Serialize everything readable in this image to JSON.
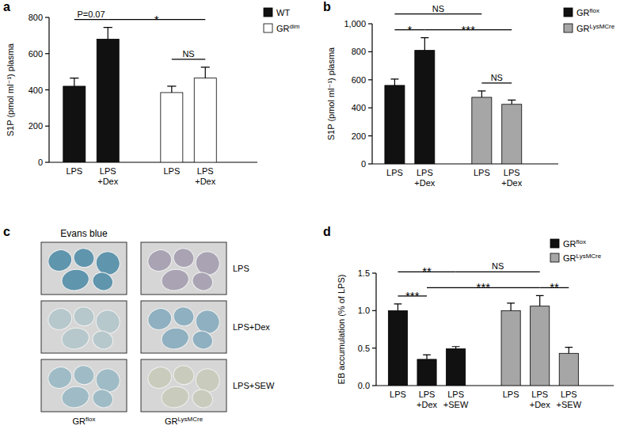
{
  "chart_data": [
    {
      "type": "bar",
      "title": "a",
      "y_label": "S1P (pmol ml⁻¹) plasma",
      "categories": [
        "LPS",
        "LPS+Dex",
        "LPS",
        "LPS+Dex"
      ],
      "series": [
        {
          "name": "WT",
          "color": "#111111",
          "values": [
            420,
            680,
            null,
            null
          ],
          "errors": [
            45,
            65,
            null,
            null
          ]
        },
        {
          "name": "GRdim",
          "color": "#ffffff",
          "values": [
            null,
            null,
            385,
            465
          ],
          "errors": [
            null,
            null,
            35,
            60
          ]
        }
      ],
      "ylim": [
        0,
        800
      ],
      "yticks": [
        0,
        200,
        400,
        600,
        800
      ],
      "legend": "upper right",
      "annotations": [
        {
          "text": "NS",
          "from": 2,
          "to": 3
        },
        {
          "text": "P=0.07",
          "from": 0,
          "to": 1
        },
        {
          "text": "*",
          "from": 1,
          "to": 3
        }
      ]
    },
    {
      "type": "bar",
      "title": "b",
      "y_label": "S1P (pmol ml⁻¹) plasma",
      "categories": [
        "LPS",
        "LPS+Dex",
        "LPS",
        "LPS+Dex"
      ],
      "series": [
        {
          "name": "GRflox",
          "color": "#111111",
          "values": [
            560,
            810,
            null,
            null
          ],
          "errors": [
            45,
            90,
            null,
            null
          ]
        },
        {
          "name": "GRLysMCre",
          "color": "#a6a6a6",
          "values": [
            null,
            null,
            475,
            425
          ],
          "errors": [
            null,
            null,
            45,
            30
          ]
        }
      ],
      "ylim": [
        0,
        1000
      ],
      "yticks": [
        0,
        200,
        400,
        600,
        800,
        {
          "value": 1000,
          "label": "1,000"
        }
      ],
      "legend": "upper right",
      "annotations": [
        {
          "text": "NS",
          "from": 2,
          "to": 3
        },
        {
          "text": "*",
          "from": 0,
          "to": 1
        },
        {
          "text": "***",
          "from": 1,
          "to": 3
        },
        {
          "text": "NS",
          "from": 0,
          "to": 2
        }
      ]
    },
    {
      "type": "bar",
      "title": "d",
      "y_label": "EB accumulation (% of LPS)",
      "categories": [
        "LPS",
        "LPS+Dex",
        "LPS+SEW",
        "LPS",
        "LPS+Dex",
        "LPS+SEW"
      ],
      "series": [
        {
          "name": "GRflox",
          "color": "#111111",
          "values": [
            1.0,
            0.35,
            0.49,
            null,
            null,
            null
          ],
          "errors": [
            0.09,
            0.06,
            0.03,
            null,
            null,
            null
          ]
        },
        {
          "name": "GRLysMCre",
          "color": "#a6a6a6",
          "values": [
            null,
            null,
            null,
            1.0,
            1.06,
            0.43
          ],
          "errors": [
            null,
            null,
            null,
            0.1,
            0.14,
            0.08
          ]
        }
      ],
      "ylim": [
        0,
        1.5
      ],
      "yticks": [
        {
          "value": 0,
          "label": "0.0"
        },
        {
          "value": 0.5,
          "label": "0.5"
        },
        {
          "value": 1.0,
          "label": "1.0"
        },
        {
          "value": 1.5,
          "label": "1.5"
        }
      ],
      "legend": "upper right",
      "annotations": [
        {
          "text": "***",
          "from": 0,
          "to": 1
        },
        {
          "text": "**",
          "from": 4,
          "to": 5
        },
        {
          "text": "***",
          "from": 1,
          "to": 4
        },
        {
          "text": "**",
          "from": 0,
          "to": 2
        },
        {
          "text": "NS",
          "from": 2,
          "to": 4
        }
      ]
    }
  ],
  "photo_panel": {
    "title": "c",
    "heading": "Evans blue",
    "rows": [
      "LPS",
      "LPS+Dex",
      "LPS+SEW"
    ],
    "columns": [
      "GRflox",
      "GRLysMCre"
    ]
  }
}
